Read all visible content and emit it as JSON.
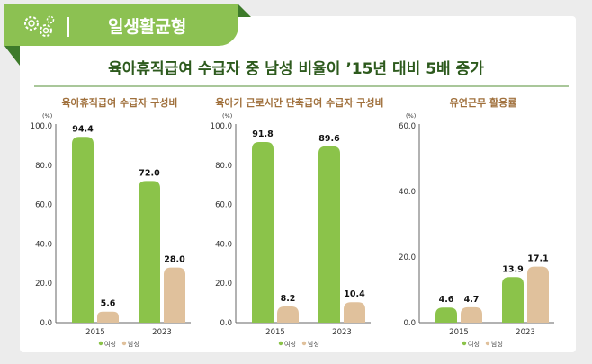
{
  "header": {
    "section": "일생활균형",
    "icon": "gears-icon"
  },
  "title": "육아휴직급여 수급자 중 남성 비율이 ’15년 대비 5배 증가",
  "colors": {
    "women": "#8bc34a",
    "men": "#e0c19c",
    "panel_title": "#a0703c"
  },
  "legend": [
    "여성",
    "남성"
  ],
  "chart_data": [
    {
      "type": "bar",
      "title": "육아휴직급여 수급자 구성비",
      "unit": "(%)",
      "ylim": [
        0,
        100
      ],
      "yticks": [
        "0.0",
        "20.0",
        "40.0",
        "60.0",
        "80.0",
        "100.0"
      ],
      "categories": [
        "2015",
        "2023"
      ],
      "series": [
        {
          "name": "여성",
          "values": [
            94.4,
            72.0
          ]
        },
        {
          "name": "남성",
          "values": [
            5.6,
            28.0
          ]
        }
      ]
    },
    {
      "type": "bar",
      "title": "육아기 근로시간 단축급여 수급자 구성비",
      "unit": "(%)",
      "ylim": [
        0,
        100
      ],
      "yticks": [
        "0.0",
        "20.0",
        "40.0",
        "60.0",
        "80.0",
        "100.0"
      ],
      "categories": [
        "2015",
        "2023"
      ],
      "series": [
        {
          "name": "여성",
          "values": [
            91.8,
            89.6
          ]
        },
        {
          "name": "남성",
          "values": [
            8.2,
            10.4
          ]
        }
      ]
    },
    {
      "type": "bar",
      "title": "유연근무 활용률",
      "unit": "(%)",
      "ylim": [
        0,
        60
      ],
      "yticks": [
        "0.0",
        "20.0",
        "40.0",
        "60.0"
      ],
      "categories": [
        "2015",
        "2023"
      ],
      "series": [
        {
          "name": "여성",
          "values": [
            4.6,
            13.9
          ]
        },
        {
          "name": "남성",
          "values": [
            4.7,
            17.1
          ]
        }
      ]
    }
  ]
}
